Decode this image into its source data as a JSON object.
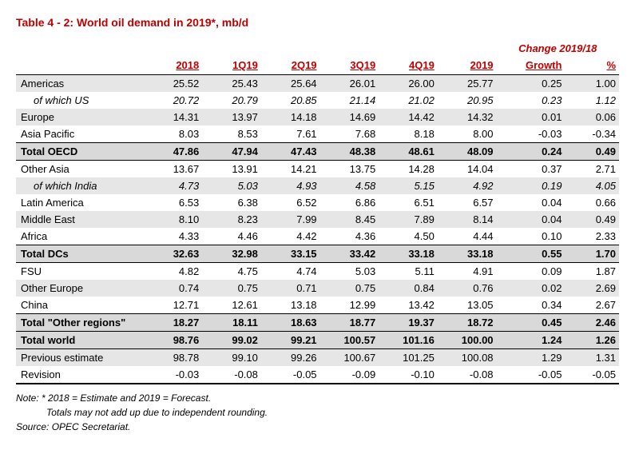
{
  "title": "Table 4 - 2: World oil demand in 2019*, mb/d",
  "change_header": "Change 2019/18",
  "columns": {
    "blank": "",
    "y2018": "2018",
    "q1": "1Q19",
    "q2": "2Q19",
    "q3": "3Q19",
    "q4": "4Q19",
    "y2019": "2019",
    "growth": "Growth",
    "pct": "%"
  },
  "rows": [
    {
      "label": "Americas",
      "shade": true,
      "v": [
        "25.52",
        "25.43",
        "25.64",
        "26.01",
        "26.00",
        "25.77",
        "0.25",
        "1.00"
      ]
    },
    {
      "label": "of which US",
      "indent": true,
      "italic": true,
      "v": [
        "20.72",
        "20.79",
        "20.85",
        "21.14",
        "21.02",
        "20.95",
        "0.23",
        "1.12"
      ]
    },
    {
      "label": "Europe",
      "shade": true,
      "v": [
        "14.31",
        "13.97",
        "14.18",
        "14.69",
        "14.42",
        "14.32",
        "0.01",
        "0.06"
      ]
    },
    {
      "label": "Asia Pacific",
      "v": [
        "8.03",
        "8.53",
        "7.61",
        "7.68",
        "8.18",
        "8.00",
        "-0.03",
        "-0.34"
      ]
    },
    {
      "label": "Total OECD",
      "total": true,
      "v": [
        "47.86",
        "47.94",
        "47.43",
        "48.38",
        "48.61",
        "48.09",
        "0.24",
        "0.49"
      ]
    },
    {
      "label": "Other Asia",
      "v": [
        "13.67",
        "13.91",
        "14.21",
        "13.75",
        "14.28",
        "14.04",
        "0.37",
        "2.71"
      ]
    },
    {
      "label": "of which India",
      "indent": true,
      "shade": true,
      "italic": true,
      "v": [
        "4.73",
        "5.03",
        "4.93",
        "4.58",
        "5.15",
        "4.92",
        "0.19",
        "4.05"
      ]
    },
    {
      "label": "Latin America",
      "v": [
        "6.53",
        "6.38",
        "6.52",
        "6.86",
        "6.51",
        "6.57",
        "0.04",
        "0.66"
      ]
    },
    {
      "label": "Middle East",
      "shade": true,
      "v": [
        "8.10",
        "8.23",
        "7.99",
        "8.45",
        "7.89",
        "8.14",
        "0.04",
        "0.49"
      ]
    },
    {
      "label": "Africa",
      "v": [
        "4.33",
        "4.46",
        "4.42",
        "4.36",
        "4.50",
        "4.44",
        "0.10",
        "2.33"
      ]
    },
    {
      "label": "Total DCs",
      "total": true,
      "v": [
        "32.63",
        "32.98",
        "33.15",
        "33.42",
        "33.18",
        "33.18",
        "0.55",
        "1.70"
      ]
    },
    {
      "label": "FSU",
      "v": [
        "4.82",
        "4.75",
        "4.74",
        "5.03",
        "5.11",
        "4.91",
        "0.09",
        "1.87"
      ]
    },
    {
      "label": "Other Europe",
      "shade": true,
      "v": [
        "0.74",
        "0.75",
        "0.71",
        "0.75",
        "0.84",
        "0.76",
        "0.02",
        "2.69"
      ]
    },
    {
      "label": "China",
      "v": [
        "12.71",
        "12.61",
        "13.18",
        "12.99",
        "13.42",
        "13.05",
        "0.34",
        "2.67"
      ]
    },
    {
      "label": "Total \"Other regions\"",
      "total": true,
      "v": [
        "18.27",
        "18.11",
        "18.63",
        "18.77",
        "19.37",
        "18.72",
        "0.45",
        "2.46"
      ]
    },
    {
      "label": "Total world",
      "total_world": true,
      "v": [
        "98.76",
        "99.02",
        "99.21",
        "100.57",
        "101.16",
        "100.00",
        "1.24",
        "1.26"
      ]
    },
    {
      "label": "Previous estimate",
      "shade": true,
      "v": [
        "98.78",
        "99.10",
        "99.26",
        "100.67",
        "101.25",
        "100.08",
        "1.29",
        "1.31"
      ]
    },
    {
      "label": "Revision",
      "revision": true,
      "v": [
        "-0.03",
        "-0.08",
        "-0.05",
        "-0.09",
        "-0.10",
        "-0.08",
        "-0.05",
        "-0.05"
      ]
    }
  ],
  "notes": {
    "n1": "Note: * 2018 = Estimate and 2019 = Forecast.",
    "n2": "Totals may not add up due to independent rounding.",
    "n3": "Source: OPEC Secretariat."
  }
}
